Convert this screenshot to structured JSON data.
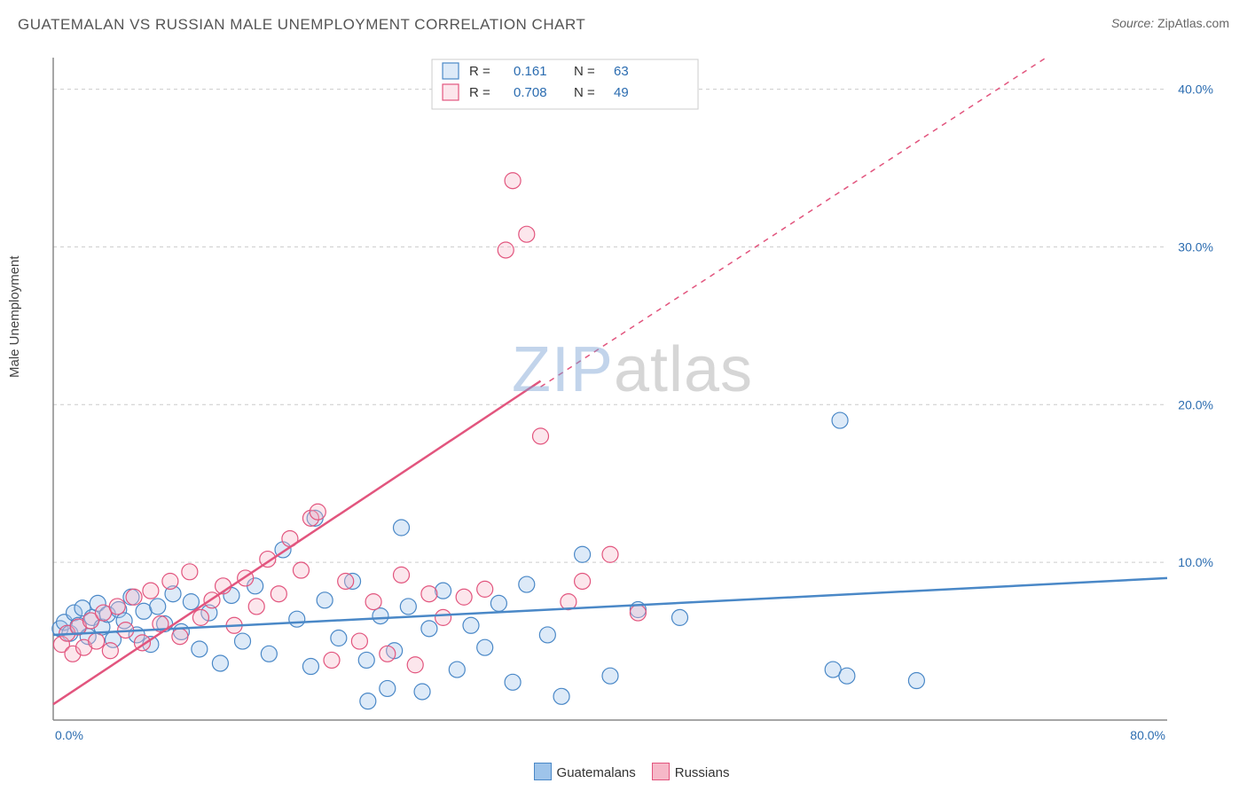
{
  "title": "GUATEMALAN VS RUSSIAN MALE UNEMPLOYMENT CORRELATION CHART",
  "source_label": "Source:",
  "source_value": "ZipAtlas.com",
  "ylabel": "Male Unemployment",
  "watermark_a": "ZIP",
  "watermark_b": "atlas",
  "chart": {
    "type": "scatter",
    "xlim": [
      0,
      80
    ],
    "ylim": [
      0,
      42
    ],
    "xticks": [
      {
        "v": 0,
        "label": "0.0%"
      },
      {
        "v": 80,
        "label": "80.0%"
      }
    ],
    "yticks": [
      {
        "v": 10,
        "label": "10.0%"
      },
      {
        "v": 20,
        "label": "20.0%"
      },
      {
        "v": 30,
        "label": "30.0%"
      },
      {
        "v": 40,
        "label": "40.0%"
      }
    ],
    "grid_color": "#cccccc",
    "axis_color": "#888888",
    "background_color": "#ffffff",
    "marker_radius": 9,
    "series": [
      {
        "name": "Guatemalans",
        "color_fill": "#9ec4ea",
        "color_stroke": "#4a88c7",
        "R": "0.161",
        "N": "63",
        "trend": {
          "x1": 0,
          "y1": 5.4,
          "x2": 80,
          "y2": 9.0,
          "dash_after_x": 80
        },
        "points": [
          [
            0.5,
            5.8
          ],
          [
            0.8,
            6.2
          ],
          [
            1.2,
            5.5
          ],
          [
            1.5,
            6.8
          ],
          [
            1.8,
            6.0
          ],
          [
            2.1,
            7.1
          ],
          [
            2.5,
            5.3
          ],
          [
            2.8,
            6.5
          ],
          [
            3.2,
            7.4
          ],
          [
            3.5,
            5.9
          ],
          [
            3.9,
            6.7
          ],
          [
            4.3,
            5.1
          ],
          [
            4.7,
            7.0
          ],
          [
            5.1,
            6.3
          ],
          [
            5.6,
            7.8
          ],
          [
            6.0,
            5.4
          ],
          [
            6.5,
            6.9
          ],
          [
            7.0,
            4.8
          ],
          [
            7.5,
            7.2
          ],
          [
            8.0,
            6.1
          ],
          [
            8.6,
            8.0
          ],
          [
            9.2,
            5.6
          ],
          [
            9.9,
            7.5
          ],
          [
            10.5,
            4.5
          ],
          [
            11.2,
            6.8
          ],
          [
            12.0,
            3.6
          ],
          [
            12.8,
            7.9
          ],
          [
            13.6,
            5.0
          ],
          [
            14.5,
            8.5
          ],
          [
            15.5,
            4.2
          ],
          [
            16.5,
            10.8
          ],
          [
            17.5,
            6.4
          ],
          [
            18.5,
            3.4
          ],
          [
            18.8,
            12.8
          ],
          [
            19.5,
            7.6
          ],
          [
            20.5,
            5.2
          ],
          [
            21.5,
            8.8
          ],
          [
            22.5,
            3.8
          ],
          [
            22.6,
            1.2
          ],
          [
            23.5,
            6.6
          ],
          [
            24.0,
            2.0
          ],
          [
            24.5,
            4.4
          ],
          [
            25.0,
            12.2
          ],
          [
            25.5,
            7.2
          ],
          [
            26.5,
            1.8
          ],
          [
            27.0,
            5.8
          ],
          [
            28.0,
            8.2
          ],
          [
            29.0,
            3.2
          ],
          [
            30.0,
            6.0
          ],
          [
            31.0,
            4.6
          ],
          [
            32.0,
            7.4
          ],
          [
            33.0,
            2.4
          ],
          [
            34.0,
            8.6
          ],
          [
            35.5,
            5.4
          ],
          [
            36.5,
            1.5
          ],
          [
            38.0,
            10.5
          ],
          [
            40.0,
            2.8
          ],
          [
            42.0,
            7.0
          ],
          [
            45.0,
            6.5
          ],
          [
            56.0,
            3.2
          ],
          [
            56.5,
            19.0
          ],
          [
            57.0,
            2.8
          ],
          [
            62.0,
            2.5
          ]
        ]
      },
      {
        "name": "Russians",
        "color_fill": "#f6b8c8",
        "color_stroke": "#e2557e",
        "R": "0.708",
        "N": "49",
        "trend": {
          "x1": 0,
          "y1": 1.0,
          "x2": 35,
          "y2": 21.5,
          "dash_after_x": 35,
          "dash_x2": 80,
          "dash_y2": 47.0
        },
        "points": [
          [
            0.6,
            4.8
          ],
          [
            1.0,
            5.5
          ],
          [
            1.4,
            4.2
          ],
          [
            1.8,
            5.9
          ],
          [
            2.2,
            4.6
          ],
          [
            2.7,
            6.3
          ],
          [
            3.1,
            5.0
          ],
          [
            3.6,
            6.8
          ],
          [
            4.1,
            4.4
          ],
          [
            4.6,
            7.2
          ],
          [
            5.2,
            5.7
          ],
          [
            5.8,
            7.8
          ],
          [
            6.4,
            4.9
          ],
          [
            7.0,
            8.2
          ],
          [
            7.7,
            6.1
          ],
          [
            8.4,
            8.8
          ],
          [
            9.1,
            5.3
          ],
          [
            9.8,
            9.4
          ],
          [
            10.6,
            6.5
          ],
          [
            11.4,
            7.6
          ],
          [
            12.2,
            8.5
          ],
          [
            13.0,
            6.0
          ],
          [
            13.8,
            9.0
          ],
          [
            14.6,
            7.2
          ],
          [
            15.4,
            10.2
          ],
          [
            16.2,
            8.0
          ],
          [
            17.0,
            11.5
          ],
          [
            17.8,
            9.5
          ],
          [
            18.5,
            12.8
          ],
          [
            19.0,
            13.2
          ],
          [
            20.0,
            3.8
          ],
          [
            21.0,
            8.8
          ],
          [
            22.0,
            5.0
          ],
          [
            23.0,
            7.5
          ],
          [
            24.0,
            4.2
          ],
          [
            25.0,
            9.2
          ],
          [
            26.0,
            3.5
          ],
          [
            27.0,
            8.0
          ],
          [
            28.0,
            6.5
          ],
          [
            29.5,
            7.8
          ],
          [
            31.0,
            8.3
          ],
          [
            32.5,
            29.8
          ],
          [
            33.0,
            34.2
          ],
          [
            34.0,
            30.8
          ],
          [
            35.0,
            18.0
          ],
          [
            37.0,
            7.5
          ],
          [
            38.0,
            8.8
          ],
          [
            40.0,
            10.5
          ],
          [
            42.0,
            6.8
          ]
        ]
      }
    ],
    "top_legend": {
      "rows": [
        {
          "swatch": "guatemalans",
          "r_label": "R =",
          "r_val": "0.161",
          "n_label": "N =",
          "n_val": "63"
        },
        {
          "swatch": "russians",
          "r_label": "R =",
          "r_val": "0.708",
          "n_label": "N =",
          "n_val": "49"
        }
      ]
    },
    "bottom_legend": [
      {
        "swatch": "guatemalans",
        "label": "Guatemalans"
      },
      {
        "swatch": "russians",
        "label": "Russians"
      }
    ]
  }
}
